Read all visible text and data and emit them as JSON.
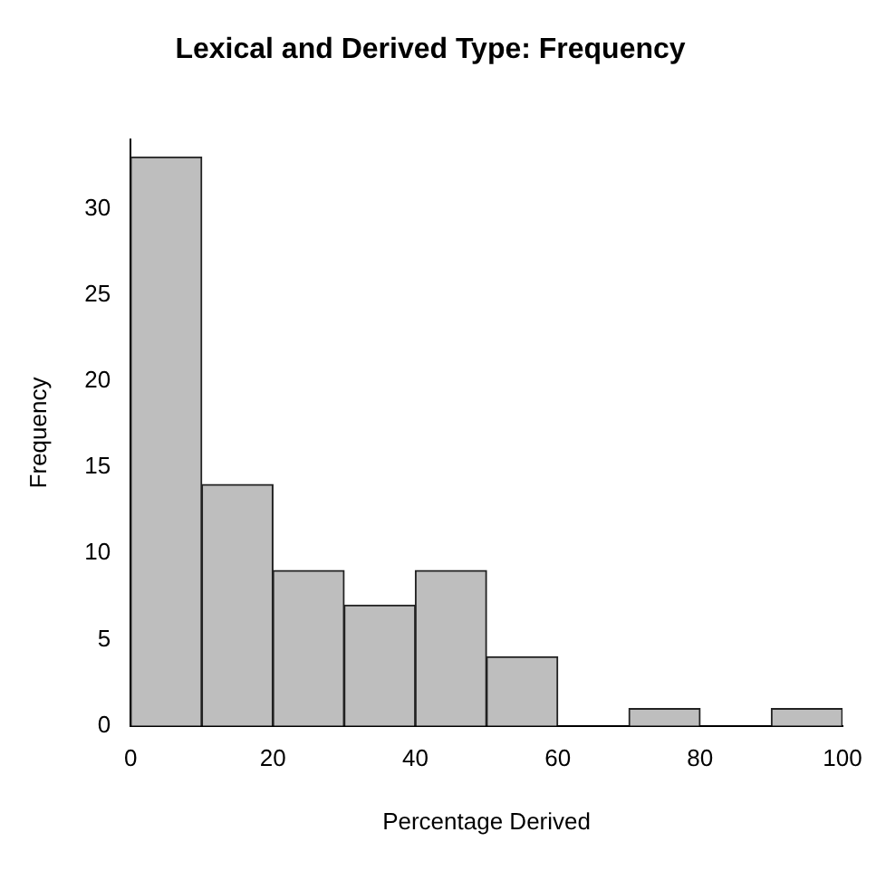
{
  "chart_data": {
    "type": "histogram",
    "title": "Lexical and Derived Type: Frequency",
    "xlabel": "Percentage Derived",
    "ylabel": "Frequency",
    "bins": [
      0,
      10,
      20,
      30,
      40,
      50,
      60,
      70,
      80,
      90,
      100
    ],
    "values": [
      33,
      14,
      9,
      7,
      9,
      4,
      0,
      1,
      0,
      1
    ],
    "color": "#bebebe",
    "xlim": [
      0,
      100
    ],
    "xticks": [
      0,
      20,
      40,
      60,
      80,
      100
    ],
    "ylim": [
      0,
      34
    ],
    "yticks": [
      0,
      5,
      10,
      15,
      20,
      25,
      30
    ],
    "grid": false,
    "legend": false
  }
}
